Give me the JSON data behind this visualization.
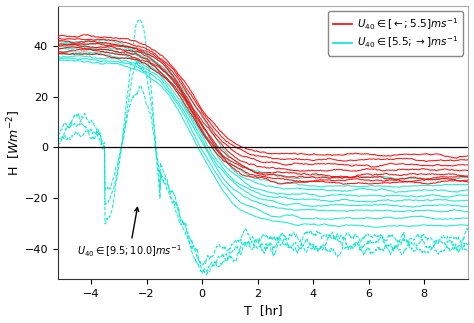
{
  "xlabel": "T  [hr]",
  "ylabel": "H  [$Wm^{-2}$]",
  "xlim": [
    -5.2,
    9.6
  ],
  "ylim": [
    -52,
    56
  ],
  "yticks": [
    -40,
    -20,
    0,
    20,
    40
  ],
  "xticks": [
    -4,
    -2,
    0,
    2,
    4,
    6,
    8
  ],
  "red_color": "#ff0000",
  "cyan_color": "#00e8cc",
  "annotation_text": "$U_{40} \\in [9.5; 10.0]ms^{-1}$",
  "legend_red": "$U_{40} \\in [\\leftarrow; 5.5]ms^{-1}$",
  "legend_cyan": "$U_{40} \\in [5.5; \\rightarrow]ms^{-1}$",
  "n_red_solid": 8,
  "n_cyan_solid": 9,
  "n_cyan_dashed": 3
}
